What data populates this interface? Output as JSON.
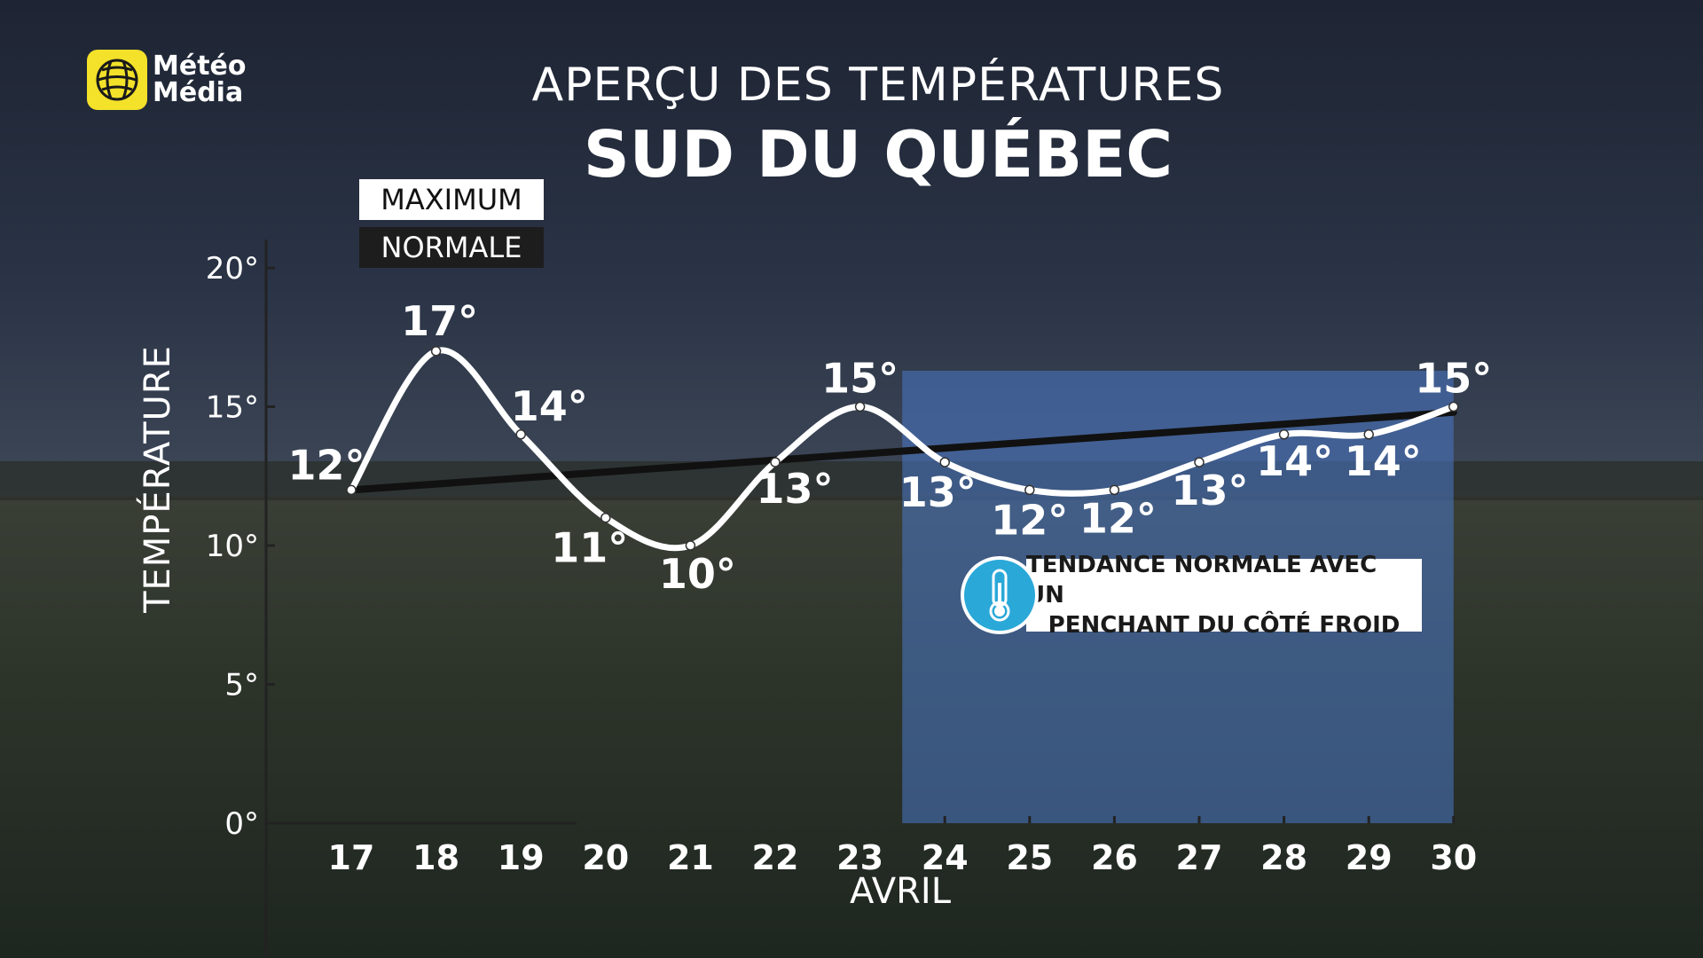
{
  "logo": {
    "line1": "Météo",
    "line2": "Média",
    "icon": "globe-icon"
  },
  "title": {
    "top": "APERÇU DES TEMPÉRATURES",
    "main": "SUD DU QUÉBEC"
  },
  "legend": {
    "maximum": "MAXIMUM",
    "normale": "NORMALE"
  },
  "callout": {
    "icon": "thermometer-icon",
    "line1": "TENDANCE NORMALE AVEC UN",
    "line2": "PENCHANT DU CÔTÉ FROID"
  },
  "colors": {
    "maximum_line": "#ffffff",
    "normale_line": "#111111",
    "highlight": "#4a78c8",
    "logo": "#f3e12a",
    "callout_icon": "#2aa8d8"
  },
  "chart_data": {
    "type": "line",
    "title": "APERÇU DES TEMPÉRATURES — SUD DU QUÉBEC",
    "xlabel": "AVRIL",
    "ylabel": "TEMPÉRATURE",
    "categories": [
      "17",
      "18",
      "19",
      "20",
      "21",
      "22",
      "23",
      "24",
      "25",
      "26",
      "27",
      "28",
      "29",
      "30"
    ],
    "ylim": [
      0,
      20
    ],
    "yticks": [
      0,
      5,
      10,
      15,
      20
    ],
    "ytick_labels": [
      "0°",
      "5°",
      "10°",
      "15°",
      "20°"
    ],
    "series": [
      {
        "name": "MAXIMUM",
        "values": [
          12,
          17,
          14,
          11,
          10,
          13,
          15,
          13,
          12,
          12,
          13,
          14,
          14,
          15
        ],
        "labels": [
          "12°",
          "17°",
          "14°",
          "11°",
          "10°",
          "13°",
          "15°",
          "13°",
          "12°",
          "12°",
          "13°",
          "14°",
          "14°",
          "15°"
        ]
      },
      {
        "name": "NORMALE",
        "values": [
          12,
          14.8
        ],
        "x": [
          "17",
          "30"
        ]
      }
    ],
    "highlight_range": [
      "24",
      "30"
    ],
    "grid": false,
    "legend": "top-left"
  }
}
